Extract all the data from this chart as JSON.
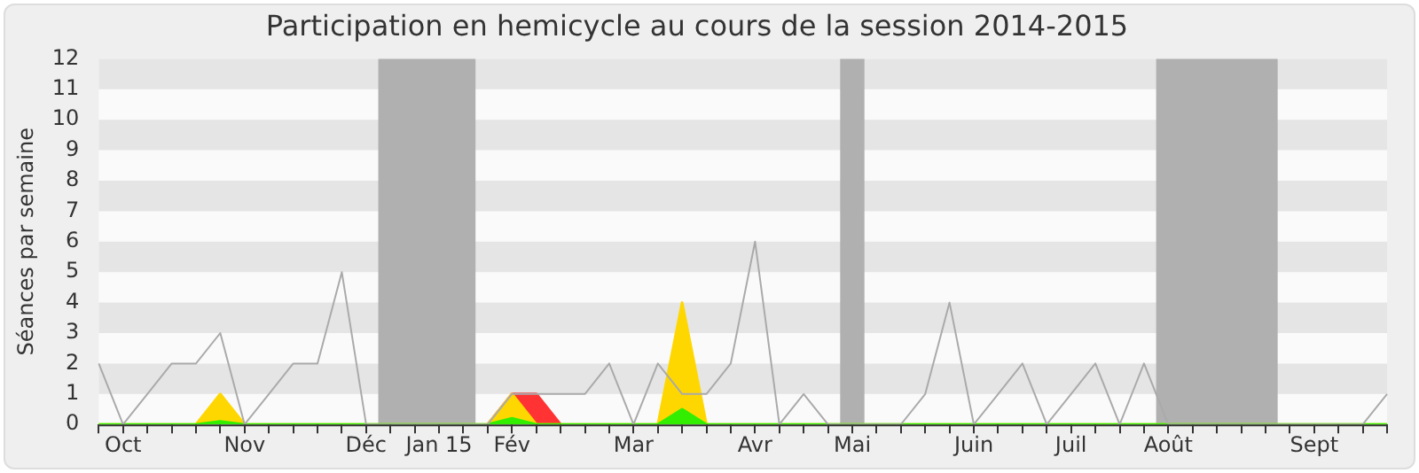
{
  "chart_data": {
    "type": "area",
    "title": "Participation en hemicycle au cours de la session 2014-2015",
    "ylabel": "Séances par semaine",
    "categories": [
      null,
      "Oct",
      null,
      null,
      null,
      null,
      "Nov",
      null,
      null,
      null,
      null,
      "Déc",
      null,
      null,
      "Jan 15",
      null,
      null,
      "Fév",
      null,
      null,
      null,
      null,
      "Mar",
      null,
      null,
      null,
      null,
      "Avr",
      null,
      null,
      null,
      "Mai",
      null,
      null,
      null,
      null,
      "Juin",
      null,
      null,
      null,
      "Juil",
      null,
      null,
      null,
      "Août",
      null,
      null,
      null,
      null,
      null,
      "Sept",
      null,
      null,
      null
    ],
    "series": [
      {
        "type": "line",
        "color": "#aaaaaa",
        "values": [
          2,
          0,
          1,
          2,
          2,
          3,
          0,
          1,
          2,
          2,
          5,
          0,
          0,
          0,
          0,
          0,
          0,
          1,
          1,
          1,
          1,
          2,
          0,
          2,
          1,
          1,
          2,
          6,
          0,
          1,
          0,
          0,
          0,
          0,
          1,
          4,
          0,
          1,
          2,
          0,
          1,
          2,
          0,
          2,
          0,
          0,
          0,
          0,
          0,
          0,
          0,
          0,
          0,
          1
        ]
      },
      {
        "color": "#33ee00",
        "values": [
          0,
          0,
          0,
          0,
          0,
          0.1,
          0,
          0,
          0,
          0,
          0,
          0,
          0,
          0,
          0,
          0,
          0,
          0.2,
          0,
          0,
          0,
          0,
          0,
          0,
          0.5,
          0,
          0,
          0,
          0,
          0,
          0,
          0,
          0,
          0,
          0,
          0,
          0,
          0,
          0,
          0,
          0,
          0,
          0,
          0,
          0,
          0,
          0,
          0,
          0,
          0,
          0,
          0,
          0,
          0
        ]
      },
      {
        "color": "#ffd700",
        "values": [
          0,
          0,
          0,
          0,
          0,
          1,
          0,
          0,
          0,
          0,
          0,
          0,
          0,
          0,
          0,
          0,
          0,
          1,
          0,
          0,
          0,
          0,
          0,
          0,
          4,
          0,
          0,
          0,
          0,
          0,
          0,
          0,
          0,
          0,
          0,
          0,
          0,
          0,
          0,
          0,
          0,
          0,
          0,
          0,
          0,
          0,
          0,
          0,
          0,
          0,
          0,
          0,
          0,
          0
        ]
      },
      {
        "color": "#ff3333",
        "values": [
          null,
          null,
          null,
          null,
          null,
          null,
          null,
          null,
          null,
          null,
          null,
          null,
          null,
          null,
          null,
          null,
          0,
          1,
          1,
          0,
          null,
          null,
          null,
          null,
          null,
          null,
          null,
          null,
          null,
          null,
          null,
          null,
          null,
          null,
          null,
          null,
          null,
          null,
          null,
          null,
          null,
          null,
          null,
          null,
          null,
          null,
          null,
          null,
          null,
          null,
          null,
          null,
          null,
          null
        ]
      }
    ],
    "ylim": [
      0,
      12
    ],
    "yticks": [
      0,
      1,
      2,
      3,
      4,
      5,
      6,
      7,
      8,
      9,
      10,
      11,
      12
    ],
    "marker": "none",
    "bands": [
      {
        "axis": "x",
        "from": "Mai",
        "to": "Mai",
        "color": "#b0b0b0"
      }
    ]
  }
}
